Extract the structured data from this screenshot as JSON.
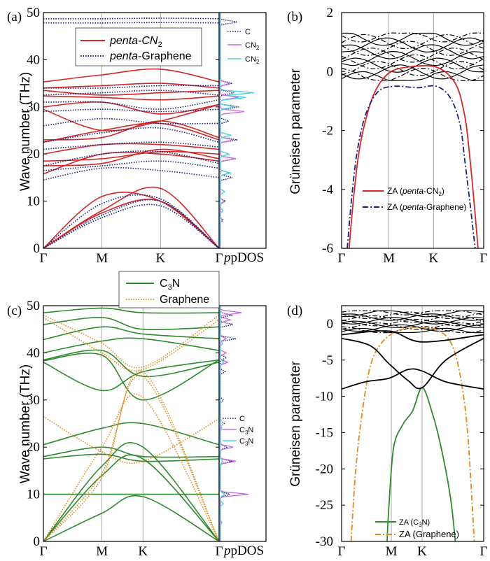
{
  "chart_data": [
    {
      "panel": "(a)",
      "type": "line",
      "xlabel": "",
      "ylabel": "Wave number (THz)",
      "x_ticks": [
        "Γ",
        "M",
        "K",
        "Γ"
      ],
      "x_extra_label": "pDOS",
      "y_ticks": [
        0,
        10,
        20,
        30,
        40,
        50
      ],
      "ylim": [
        0,
        50
      ],
      "grid": "vertical lines at M and K",
      "legend": {
        "placement": "top-center",
        "entries": [
          {
            "name": "penta-CN2",
            "style": "solid",
            "color": "#d62728"
          },
          {
            "name": "penta-Graphene",
            "style": "dotted",
            "color": "#1a237e"
          }
        ]
      },
      "series": [
        {
          "name": "penta-CN2",
          "color": "#d62728",
          "style": "solid",
          "k_values": [
            0,
            0.5,
            1.0,
            1.5
          ],
          "bands": [
            [
              0,
              8.0,
              12.7,
              0
            ],
            [
              0,
              11.0,
              10.0,
              0
            ],
            [
              0,
              7.5,
              10.0,
              0
            ],
            [
              15.8,
              20.0,
              20.0,
              18.5
            ],
            [
              17.5,
              18.0,
              21.0,
              19.0
            ],
            [
              18.5,
              19.0,
              20.5,
              20.0
            ],
            [
              20.0,
              22.0,
              22.0,
              21.0
            ],
            [
              22.5,
              25.0,
              26.5,
              23.0
            ],
            [
              23.0,
              23.5,
              27.0,
              23.5
            ],
            [
              29.5,
              25.0,
              27.0,
              30.5
            ],
            [
              30.0,
              31.0,
              28.5,
              30.5
            ],
            [
              32.3,
              32.0,
              31.5,
              32.3
            ],
            [
              33.5,
              32.5,
              33.0,
              33.5
            ],
            [
              34.0,
              34.5,
              35.0,
              34.0
            ],
            [
              35.3,
              36.8,
              38.0,
              35.3
            ]
          ]
        },
        {
          "name": "penta-Graphene",
          "color": "#1a237e",
          "style": "dotted",
          "k_values": [
            0,
            0.5,
            1.0,
            1.5
          ],
          "bands": [
            [
              0,
              7.0,
              10.0,
              0
            ],
            [
              0,
              9.5,
              10.5,
              0
            ],
            [
              0,
              6.5,
              9.0,
              0
            ],
            [
              14.5,
              17.0,
              16.5,
              15.0
            ],
            [
              16.5,
              17.5,
              18.5,
              17.0
            ],
            [
              17.5,
              20.0,
              20.5,
              18.0
            ],
            [
              21.0,
              22.0,
              22.5,
              21.5
            ],
            [
              22.5,
              24.5,
              25.5,
              22.5
            ],
            [
              26.0,
              27.5,
              26.5,
              26.5
            ],
            [
              29.0,
              29.5,
              29.0,
              29.5
            ],
            [
              31.0,
              31.0,
              29.5,
              31.5
            ],
            [
              32.5,
              33.0,
              33.5,
              32.5
            ],
            [
              34.0,
              34.0,
              34.5,
              34.5
            ],
            [
              47.8,
              47.8,
              47.9,
              47.8
            ],
            [
              48.7,
              48.7,
              48.8,
              48.7
            ]
          ]
        }
      ],
      "pdos_legend": [
        "C",
        "CN2",
        "CN2"
      ],
      "pdos_colors": [
        "#1a237e",
        "#c46fe0",
        "#4dd0e1"
      ]
    },
    {
      "panel": "(b)",
      "type": "line",
      "xlabel": "",
      "ylabel": "Grüneisen parameter",
      "x_ticks": [
        "Γ",
        "M",
        "K",
        "Γ"
      ],
      "y_ticks": [
        2,
        0,
        -2,
        -4,
        -6
      ],
      "ylim": [
        -6,
        2
      ],
      "grid": "vertical lines at M and K",
      "legend": {
        "placement": "bottom-center",
        "entries": [
          {
            "name": "ZA (penta-CN2)",
            "style": "solid",
            "color": "#d62728"
          },
          {
            "name": "ZA (penta-Graphene)",
            "style": "dash-dot",
            "color": "#1a237e"
          }
        ]
      },
      "series": [
        {
          "name": "ZA (penta-CN2)",
          "color": "#d62728",
          "style": "solid",
          "x": [
            0.08,
            0.12,
            0.18,
            0.25,
            0.35,
            0.5,
            0.7,
            1.0,
            1.2,
            1.3,
            1.35,
            1.4,
            1.44
          ],
          "y": [
            -6.0,
            -4.5,
            -2.8,
            -1.7,
            -0.7,
            -0.05,
            0.15,
            0.15,
            -0.4,
            -1.5,
            -2.8,
            -4.5,
            -6.0
          ]
        },
        {
          "name": "ZA (penta-Graphene)",
          "color": "#1a237e",
          "style": "dash-dot",
          "x": [
            0.06,
            0.1,
            0.16,
            0.25,
            0.38,
            0.55,
            0.8,
            1.0,
            1.15,
            1.25,
            1.3,
            1.36,
            1.41
          ],
          "y": [
            -6.0,
            -4.5,
            -2.8,
            -1.5,
            -0.7,
            -0.5,
            -0.55,
            -0.5,
            -0.9,
            -1.8,
            -3.0,
            -4.6,
            -6.0
          ]
        }
      ],
      "other_branches": "black solid and dash-dot lines between -0.3 and 1.3"
    },
    {
      "panel": "(c)",
      "type": "line",
      "xlabel": "",
      "ylabel": "Wave number (THz)",
      "x_ticks": [
        "Γ",
        "M",
        "K",
        "Γ"
      ],
      "x_extra_label": "pDOS",
      "y_ticks": [
        0,
        10,
        20,
        30,
        40,
        50
      ],
      "ylim": [
        0,
        50
      ],
      "grid": "vertical lines at M and K",
      "legend": {
        "placement": "top-left",
        "entries": [
          {
            "name": "C3N",
            "style": "solid",
            "color": "#2e8b2e"
          },
          {
            "name": "Graphene",
            "style": "dotted",
            "color": "#e08a1a"
          }
        ]
      },
      "series": [
        {
          "name": "C3N",
          "color": "#2e8b2e",
          "style": "solid",
          "k_values": [
            0,
            0.5,
            0.85,
            1.5
          ],
          "bands": [
            [
              0,
              14.0,
              17.5,
              0
            ],
            [
              0,
              16.0,
              20.0,
              0
            ],
            [
              0,
              6.0,
              9.5,
              0
            ],
            [
              10.0,
              10.0,
              10.0,
              10.0
            ],
            [
              17.5,
              18.5,
              17.0,
              17.5
            ],
            [
              18.0,
              20.0,
              18.0,
              18.0
            ],
            [
              20.5,
              24.0,
              25.0,
              20.5
            ],
            [
              38.0,
              32.0,
              36.0,
              38.5
            ],
            [
              38.3,
              39.5,
              30.0,
              38.5
            ],
            [
              38.5,
              40.5,
              35.0,
              38.0
            ],
            [
              40.0,
              42.5,
              43.0,
              40.5
            ],
            [
              42.8,
              45.5,
              44.0,
              43.0
            ],
            [
              46.0,
              47.5,
              45.0,
              45.5
            ],
            [
              48.5,
              49.5,
              48.5,
              48.5
            ]
          ]
        },
        {
          "name": "Graphene",
          "color": "#e08a1a",
          "style": "dotted",
          "k_values": [
            0,
            0.5,
            0.85,
            1.5
          ],
          "bands": [
            [
              0,
              14.5,
              35.0,
              0
            ],
            [
              0,
              20.0,
              30.5,
              0
            ],
            [
              0,
              13.5,
              36.0,
              0
            ],
            [
              26.5,
              19.0,
              17.0,
              26.0
            ],
            [
              47.5,
              40.0,
              36.5,
              47.0
            ],
            [
              48.0,
              42.0,
              37.0,
              48.0
            ]
          ]
        }
      ],
      "pdos_legend": [
        "C",
        "C3N",
        "C3N"
      ],
      "pdos_colors": [
        "#1a237e",
        "#c46fe0",
        "#4dd0e1"
      ]
    },
    {
      "panel": "(d)",
      "type": "line",
      "xlabel": "",
      "ylabel": "Grüneisen parameter",
      "x_ticks": [
        "Γ",
        "M",
        "K",
        "Γ"
      ],
      "y_ticks": [
        0,
        -5,
        -10,
        -15,
        -20,
        -25,
        -30
      ],
      "ylim": [
        -30,
        2.5
      ],
      "grid": "vertical lines at M and K",
      "legend": {
        "placement": "bottom-right",
        "entries": [
          {
            "name": "ZA (C3N)",
            "style": "solid",
            "color": "#2e8b2e"
          },
          {
            "name": "ZA (Graphene)",
            "style": "dash-dot",
            "color": "#e08a1a"
          }
        ]
      },
      "series": [
        {
          "name": "ZA (C3N)",
          "color": "#2e8b2e",
          "style": "solid",
          "x": [
            0.48,
            0.5,
            0.55,
            0.65,
            0.75,
            0.85,
            0.95,
            1.05,
            1.15,
            1.2
          ],
          "y": [
            -30.0,
            -25.0,
            -17.0,
            -13.8,
            -12.0,
            -8.8,
            -12.0,
            -17.0,
            -24.0,
            -30.0
          ]
        },
        {
          "name": "ZA (Graphene)",
          "color": "#e08a1a",
          "style": "dash-dot",
          "x": [
            0.1,
            0.15,
            0.22,
            0.3,
            0.4,
            0.55,
            0.7,
            0.85,
            1.0,
            1.15,
            1.25,
            1.33,
            1.4
          ],
          "y": [
            -30.0,
            -20.0,
            -12.0,
            -6.0,
            -3.0,
            -1.2,
            -0.6,
            -0.5,
            -0.8,
            -2.5,
            -7.0,
            -15.0,
            -30.0
          ]
        },
        {
          "name": "",
          "color": "#000000",
          "style": "solid",
          "x": [
            0,
            0.25,
            0.5,
            0.7,
            0.85,
            1.1,
            1.5
          ],
          "y": [
            -9.0,
            -8.0,
            -7.5,
            -6.3,
            -6.5,
            -8.0,
            -9.0
          ]
        },
        {
          "name": "",
          "color": "#000000",
          "style": "solid",
          "x": [
            0,
            0.3,
            0.5,
            0.7,
            0.85,
            1.1,
            1.5
          ],
          "y": [
            -2.0,
            -3.0,
            -5.5,
            -7.8,
            -8.8,
            -5.0,
            -2.0
          ]
        },
        {
          "name": "",
          "color": "#000000",
          "style": "solid",
          "x": [
            0,
            0.5,
            0.85,
            1.5
          ],
          "y": [
            -1.5,
            -1.0,
            -2.5,
            -1.5
          ]
        }
      ],
      "other_branches": "black lines between -2 and 2"
    }
  ],
  "panels": {
    "a": {
      "label": "(a)",
      "ylabel": "Wave number (THz)",
      "xticks": [
        "Γ",
        "M",
        "K",
        "Γ"
      ],
      "pdos": "pDOS",
      "yticks": [
        "0",
        "10",
        "20",
        "30",
        "40",
        "50"
      ],
      "legend1": "penta-CN",
      "legend1_sub": "2",
      "legend2_a": "penta",
      "legend2_b": "-Graphene",
      "pdos1": "C",
      "pdos2": "CN",
      "pdos2_sub": "2",
      "pdos3": "CN",
      "pdos3_sub": "2"
    },
    "b": {
      "label": "(b)",
      "ylabel": "Grüneisen parameter",
      "xticks": [
        "Γ",
        "M",
        "K",
        "Γ"
      ],
      "yticks": [
        "2",
        "0",
        "-2",
        "-4",
        "-6"
      ],
      "legend1_a": "ZA (",
      "legend1_b": "penta",
      "legend1_c": "-CN",
      "legend1_sub": "2",
      "legend1_d": ")",
      "legend2_a": "ZA (",
      "legend2_b": "penta",
      "legend2_c": "-Graphene)"
    },
    "c": {
      "label": "(c)",
      "ylabel": "Wave number (THz)",
      "xticks": [
        "Γ",
        "M",
        "K",
        "Γ"
      ],
      "pdos": "pDOS",
      "yticks": [
        "0",
        "10",
        "20",
        "30",
        "40",
        "50"
      ],
      "legend1": "C",
      "legend1_sub": "3",
      "legend1_b": "N",
      "legend2": "Graphene",
      "pdos1": "C",
      "pdos2": "C",
      "pdos2_sub": "3",
      "pdos2_b": "N",
      "pdos3": "C",
      "pdos3_sub": "3",
      "pdos3_b": "N"
    },
    "d": {
      "label": "(d)",
      "ylabel": "Grüneisen parameter",
      "xticks": [
        "Γ",
        "M",
        "K",
        "Γ"
      ],
      "yticks": [
        "0",
        "-5",
        "-10",
        "-15",
        "-20",
        "-25",
        "-30"
      ],
      "legend1_a": "ZA (C",
      "legend1_sub": "3",
      "legend1_b": "N)",
      "legend2": "ZA (Graphene)"
    }
  }
}
